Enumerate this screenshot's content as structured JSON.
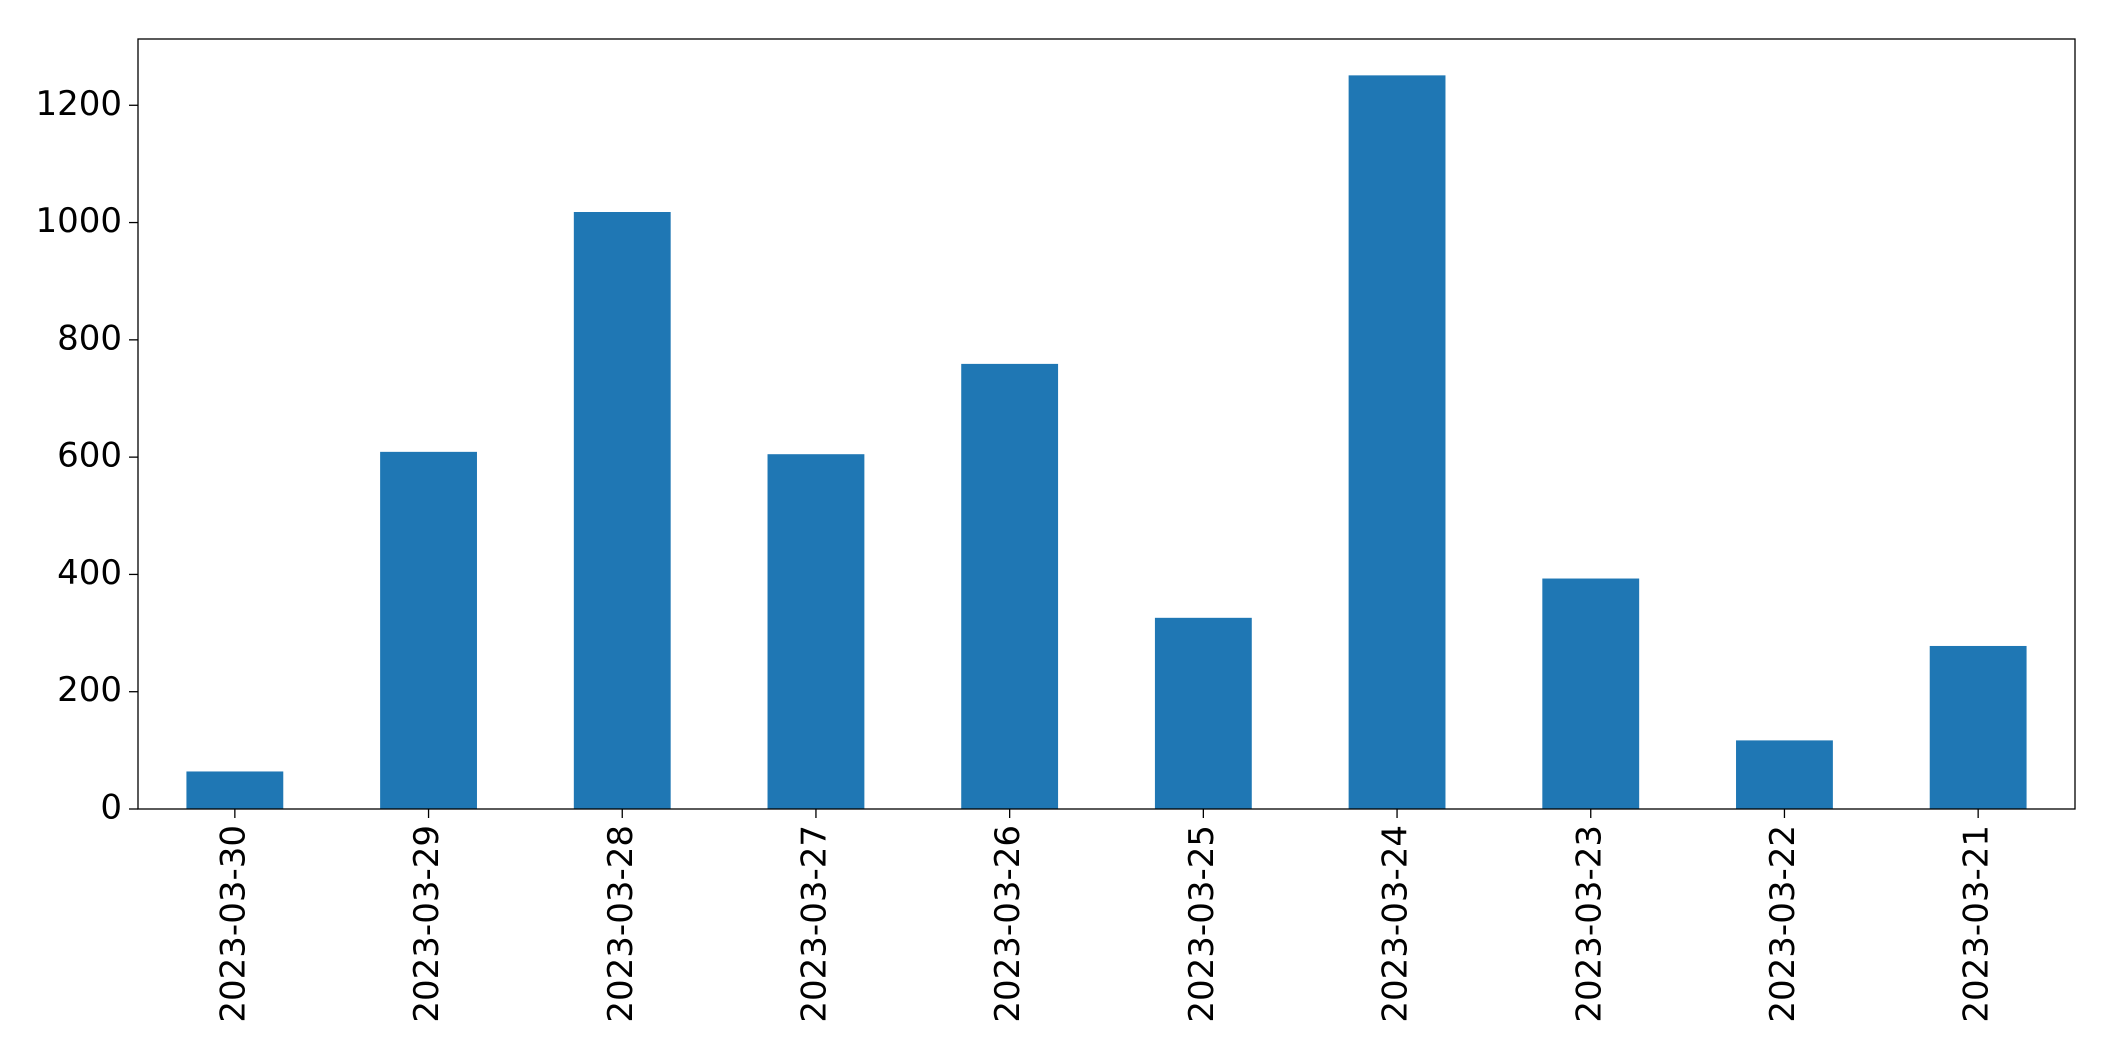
{
  "chart_data": {
    "type": "bar",
    "categories": [
      "2023-03-30",
      "2023-03-29",
      "2023-03-28",
      "2023-03-27",
      "2023-03-26",
      "2023-03-25",
      "2023-03-24",
      "2023-03-23",
      "2023-03-22",
      "2023-03-21"
    ],
    "values": [
      64,
      609,
      1018,
      605,
      759,
      326,
      1251,
      393,
      117,
      278
    ],
    "color": "#1f77b4",
    "ylim": [
      0,
      1313
    ],
    "yticks": [
      0,
      200,
      400,
      600,
      800,
      1000,
      1200
    ],
    "grid": false
  }
}
